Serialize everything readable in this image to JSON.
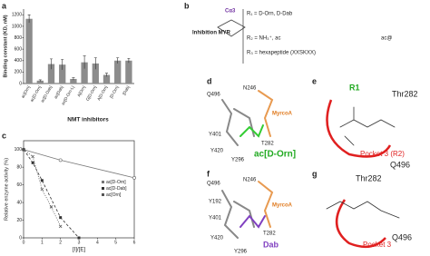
{
  "panel_labels": [
    "a",
    "b",
    "c",
    "d",
    "e",
    "f",
    "g"
  ],
  "chart_data": [
    {
      "type": "bar",
      "ylabel": "Binding constant (KD, nM)",
      "xlabel": "NMT inhibitors",
      "categories": [
        "ac[Orn]",
        "ac[D-Orn]",
        "ac[D-Dab]",
        "ac[Dab]",
        "ac[D-Orn-L]",
        "A[Orn]",
        "G[D-Orn]",
        "A[D-Orn]",
        "[D-Orn]",
        "[Dab]"
      ],
      "values": [
        1130,
        50,
        340,
        330,
        80,
        370,
        350,
        150,
        400,
        400
      ],
      "errors": [
        70,
        15,
        90,
        90,
        20,
        110,
        100,
        30,
        50,
        40
      ],
      "color": "#8c8c8c",
      "ylim": [
        0,
        1300
      ],
      "yticks": [
        0,
        200,
        400,
        600,
        800,
        1000,
        1200
      ]
    },
    {
      "type": "line",
      "ylabel": "Relative enzyme activity (%)",
      "xlabel": "[I]/[E]",
      "xlim": [
        0,
        6
      ],
      "xticks": [
        0,
        1,
        2,
        3,
        4,
        5,
        6
      ],
      "ylim": [
        0,
        110
      ],
      "yticks": [
        0,
        20,
        40,
        60,
        80,
        100
      ],
      "legend": "center right",
      "series": [
        {
          "name": "ac[D-Orn]",
          "color": "#777777",
          "x": [
            0,
            2,
            6
          ],
          "values": [
            100,
            88,
            68
          ]
        },
        {
          "name": "ac[D-Dab]",
          "color": "#333333",
          "x": [
            0,
            0.5,
            1,
            2,
            3
          ],
          "values": [
            100,
            85,
            65,
            23,
            0
          ]
        },
        {
          "name": "ac[Orn]",
          "color": "#555555",
          "x": [
            0,
            0.5,
            1,
            1.5,
            2
          ],
          "values": [
            100,
            92,
            55,
            35,
            13
          ]
        }
      ]
    }
  ],
  "scheme_b": {
    "title": "Inhibition MYR",
    "calpha": "Cα3",
    "r1": "R₁ = D-Orn, D-Dab",
    "r2": "R₂ = NH₃⁺, ac",
    "r3": "R₃ = hexapeptide (XXSKXX)",
    "ac": "ac@"
  },
  "panel_d": [
    "N246",
    "Q496",
    "Y401",
    "Y420",
    "Y296",
    "T282",
    "MyrcoA",
    "ac[D-Orn]"
  ],
  "panel_e": [
    "R1",
    "Thr282",
    "Pocket 3 (R2)",
    "Q496"
  ],
  "panel_f": [
    "Q496",
    "N246",
    "Y192",
    "Y401",
    "Y420",
    "Y296",
    "T282",
    "MyrcoA",
    "Dab"
  ],
  "panel_g": [
    "Thr282",
    "Pocket 3",
    "Q496"
  ]
}
